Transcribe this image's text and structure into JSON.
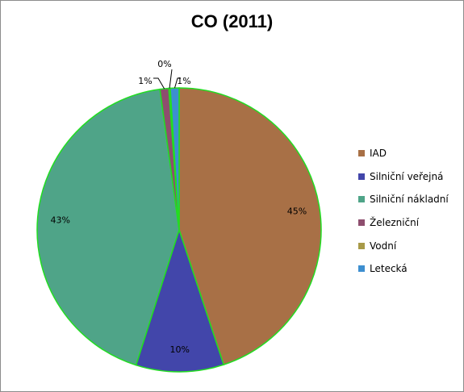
{
  "chart_data": {
    "type": "pie",
    "title": "CO (2011)",
    "categories": [
      "IAD",
      "Silniční veřejná",
      "Silniční nákladní",
      "Železniční",
      "Vodní",
      "Letecká"
    ],
    "values": [
      45,
      10,
      43,
      1,
      0,
      1
    ],
    "data_labels": [
      "45%",
      "10%",
      "43%",
      "1%",
      "0%",
      "1%"
    ],
    "colors": [
      "#A87046",
      "#4246AA",
      "#4FA488",
      "#8E4E6E",
      "#A89A48",
      "#3D8FD0"
    ],
    "slice_border_color": "#22DD22",
    "legend_position": "right",
    "start_angle_deg": 0,
    "direction": "clockwise"
  }
}
